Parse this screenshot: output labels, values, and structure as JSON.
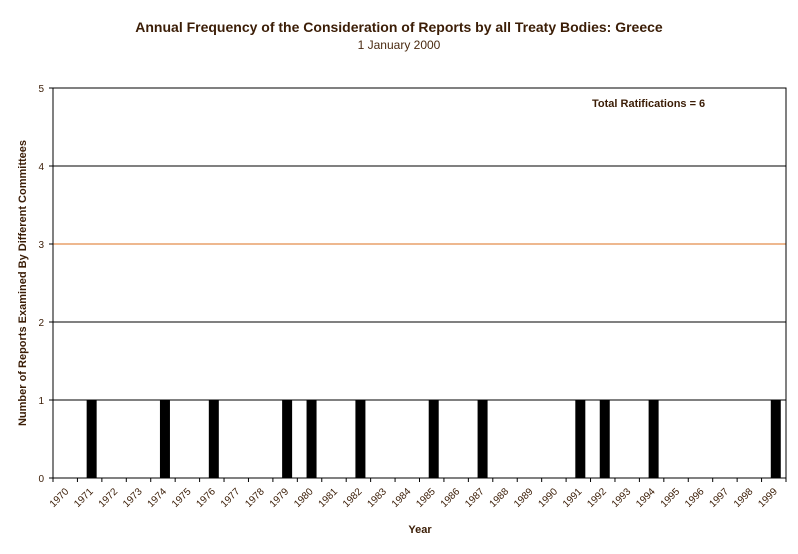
{
  "chart_data": {
    "type": "bar",
    "title": "Annual Frequency of the Consideration of Reports by all Treaty Bodies: Greece",
    "subtitle": "1 January 2000",
    "xlabel": "Year",
    "ylabel": "Number of Reports Examined By Different Committees",
    "annotation": "Total Ratifications = 6",
    "ylim": [
      0,
      5
    ],
    "yticks": [
      0,
      1,
      2,
      3,
      4,
      5
    ],
    "highlight_gridline": 3,
    "colors": {
      "bar": "#000000",
      "grid": "#000000",
      "highlight_grid": "#e8a06a",
      "text": "#3b1d06"
    },
    "categories": [
      "1970",
      "1971",
      "1972",
      "1973",
      "1974",
      "1975",
      "1976",
      "1977",
      "1978",
      "1979",
      "1980",
      "1981",
      "1982",
      "1983",
      "1984",
      "1985",
      "1986",
      "1987",
      "1988",
      "1989",
      "1990",
      "1991",
      "1992",
      "1993",
      "1994",
      "1995",
      "1996",
      "1997",
      "1998",
      "1999"
    ],
    "values": [
      0,
      1,
      0,
      0,
      1,
      0,
      1,
      0,
      0,
      1,
      1,
      0,
      1,
      0,
      0,
      1,
      0,
      1,
      0,
      0,
      0,
      1,
      1,
      0,
      1,
      0,
      0,
      0,
      0,
      1
    ]
  }
}
